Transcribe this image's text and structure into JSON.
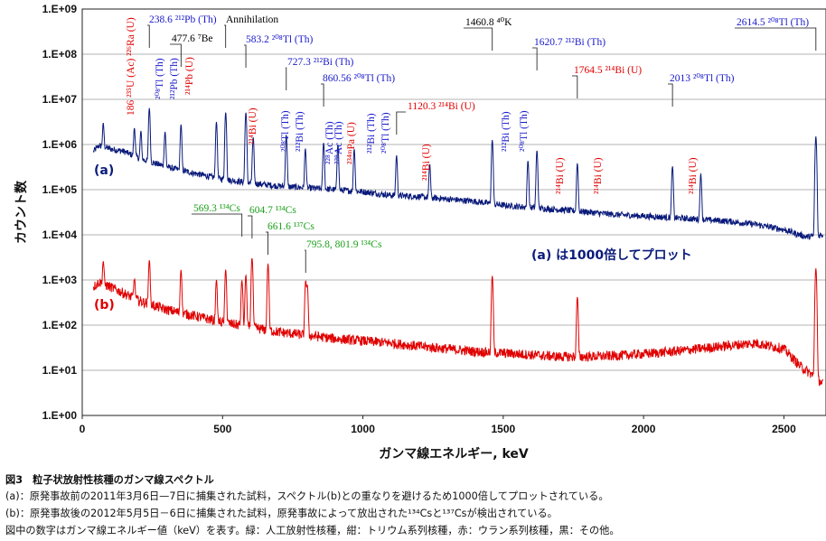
{
  "chart_data": {
    "type": "line",
    "ylabel": "カウント数",
    "xlabel": "ガンマ線エネルギー, keV",
    "y_scale": "log",
    "ylim": [
      1,
      1000000000
    ],
    "xlim": [
      0,
      2650
    ],
    "y_ticks": [
      "1.E+00",
      "1.E+01",
      "1.E+02",
      "1.E+03",
      "1.E+04",
      "1.E+05",
      "1.E+06",
      "1.E+07",
      "1.E+08",
      "1.E+09"
    ],
    "x_ticks": [
      0,
      500,
      1000,
      1500,
      2000,
      2500
    ],
    "grid": true,
    "series": [
      {
        "name": "(a)",
        "color": "#0a1a7a",
        "baseline": [
          [
            40,
            700000
          ],
          [
            60,
            950000
          ],
          [
            100,
            800000
          ],
          [
            150,
            700000
          ],
          [
            200,
            500000
          ],
          [
            300,
            320000
          ],
          [
            400,
            230000
          ],
          [
            500,
            170000
          ],
          [
            600,
            140000
          ],
          [
            700,
            120000
          ],
          [
            800,
            110000
          ],
          [
            900,
            100000
          ],
          [
            1000,
            90000
          ],
          [
            1100,
            75000
          ],
          [
            1200,
            70000
          ],
          [
            1300,
            62000
          ],
          [
            1400,
            55000
          ],
          [
            1500,
            45000
          ],
          [
            1600,
            40000
          ],
          [
            1700,
            36000
          ],
          [
            1800,
            32000
          ],
          [
            1900,
            28000
          ],
          [
            2000,
            26000
          ],
          [
            2100,
            24000
          ],
          [
            2200,
            22000
          ],
          [
            2300,
            20000
          ],
          [
            2400,
            17000
          ],
          [
            2500,
            13000
          ],
          [
            2580,
            9000
          ],
          [
            2640,
            10000
          ]
        ],
        "peaks": [
          [
            75,
            2000000
          ],
          [
            186,
            1800000
          ],
          [
            209,
            1500000
          ],
          [
            239,
            6000000
          ],
          [
            295,
            1600000
          ],
          [
            352,
            2500000
          ],
          [
            478,
            3000000
          ],
          [
            511,
            5000000
          ],
          [
            583,
            5000000
          ],
          [
            609,
            1300000
          ],
          [
            727,
            1500000
          ],
          [
            795,
            700000
          ],
          [
            860,
            1000000
          ],
          [
            911,
            900000
          ],
          [
            969,
            700000
          ],
          [
            1120,
            500000
          ],
          [
            1238,
            300000
          ],
          [
            1461,
            1200000
          ],
          [
            1588,
            400000
          ],
          [
            1620,
            700000
          ],
          [
            1764,
            350000
          ],
          [
            2103,
            300000
          ],
          [
            2204,
            200000
          ],
          [
            2614,
            1500000
          ]
        ]
      },
      {
        "name": "(b)",
        "color": "#e00000",
        "baseline": [
          [
            40,
            700
          ],
          [
            60,
            900
          ],
          [
            100,
            700
          ],
          [
            150,
            500
          ],
          [
            200,
            350
          ],
          [
            300,
            220
          ],
          [
            400,
            160
          ],
          [
            500,
            115
          ],
          [
            600,
            90
          ],
          [
            700,
            70
          ],
          [
            800,
            60
          ],
          [
            900,
            50
          ],
          [
            1000,
            45
          ],
          [
            1100,
            40
          ],
          [
            1200,
            34
          ],
          [
            1300,
            30
          ],
          [
            1400,
            26
          ],
          [
            1500,
            24
          ],
          [
            1600,
            22
          ],
          [
            1700,
            20
          ],
          [
            1800,
            20
          ],
          [
            1900,
            21
          ],
          [
            2000,
            23
          ],
          [
            2100,
            26
          ],
          [
            2200,
            30
          ],
          [
            2300,
            35
          ],
          [
            2400,
            40
          ],
          [
            2500,
            30
          ],
          [
            2560,
            12
          ],
          [
            2600,
            8
          ],
          [
            2640,
            5
          ]
        ],
        "peaks": [
          [
            75,
            1800
          ],
          [
            186,
            700
          ],
          [
            239,
            2500
          ],
          [
            352,
            1500
          ],
          [
            478,
            900
          ],
          [
            511,
            1600
          ],
          [
            569,
            900
          ],
          [
            583,
            1200
          ],
          [
            605,
            3000
          ],
          [
            662,
            2200
          ],
          [
            796,
            900
          ],
          [
            802,
            700
          ],
          [
            1461,
            1200
          ],
          [
            1764,
            400
          ],
          [
            2614,
            1800
          ]
        ]
      }
    ],
    "series_labels": [
      "(a)",
      "(b)"
    ],
    "annotation_note": "(a) は1000倍してプロット",
    "annotations": [
      {
        "text": "186 ²³⁵U (Ac) ²²⁶Ra (U)",
        "color": "#e00000",
        "rotated": true
      },
      {
        "text": "238.6 ²¹²Pb (Th)",
        "color": "#1a1acc"
      },
      {
        "text": "²⁰⁸Tl (Th)",
        "color": "#1a1acc",
        "rotated": true
      },
      {
        "text": "²¹²Pb (Th)",
        "color": "#1a1acc",
        "rotated": true
      },
      {
        "text": "²¹⁴Pb (U)",
        "color": "#e00000",
        "rotated": true
      },
      {
        "text": "477.6 ⁷Be",
        "color": "#000000"
      },
      {
        "text": "Annihilation",
        "color": "#000000"
      },
      {
        "text": "583.2 ²⁰⁸Tl (Th)",
        "color": "#1a1acc"
      },
      {
        "text": "²¹⁴Bi (U)",
        "color": "#e00000",
        "rotated": true
      },
      {
        "text": "727.3 ²¹²Bi (Th)",
        "color": "#1a1acc"
      },
      {
        "text": "²⁰⁸Tl (Th)",
        "color": "#1a1acc",
        "rotated": true
      },
      {
        "text": "²¹²Bi (Th)",
        "color": "#1a1acc",
        "rotated": true
      },
      {
        "text": "860.56 ²⁰⁸Tl (Th)",
        "color": "#1a1acc"
      },
      {
        "text": "²²⁸Ac (Th)",
        "color": "#1a1acc",
        "rotated": true
      },
      {
        "text": "²²⁸Ac (Th)",
        "color": "#1a1acc",
        "rotated": true
      },
      {
        "text": "²³⁴ᵐPa (U)",
        "color": "#e00000",
        "rotated": true
      },
      {
        "text": "²¹²Bi (Th)",
        "color": "#1a1acc",
        "rotated": true
      },
      {
        "text": "²⁰⁸Tl (Th)",
        "color": "#1a1acc",
        "rotated": true
      },
      {
        "text": "1120.3 ²¹⁴Bi (U)",
        "color": "#e00000"
      },
      {
        "text": "²¹⁴Bi (U)",
        "color": "#e00000",
        "rotated": true
      },
      {
        "text": "1460.8 ⁴⁰K",
        "color": "#000000"
      },
      {
        "text": "²¹²Bi (Th)",
        "color": "#1a1acc",
        "rotated": true
      },
      {
        "text": "²⁰⁸Tl (Th)",
        "color": "#1a1acc",
        "rotated": true
      },
      {
        "text": "1620.7 ²¹²Bi (Th)",
        "color": "#1a1acc"
      },
      {
        "text": "1764.5 ²¹⁴Bi (U)",
        "color": "#e00000"
      },
      {
        "text": "²¹⁴Bi (U)",
        "color": "#e00000",
        "rotated": true
      },
      {
        "text": "²¹⁴Bi (U)",
        "color": "#e00000",
        "rotated": true
      },
      {
        "text": "2013 ²⁰⁸Tl (Th)",
        "color": "#1a1acc"
      },
      {
        "text": "²¹⁴Bi (U)",
        "color": "#e00000",
        "rotated": true
      },
      {
        "text": "2614.5 ²⁰⁸Tl (Th)",
        "color": "#1a1acc"
      },
      {
        "text": "569.3 ¹³⁴Cs",
        "color": "#1a9e1a"
      },
      {
        "text": "604.7 ¹³⁴Cs",
        "color": "#1a9e1a"
      },
      {
        "text": "661.6 ¹³⁷Cs",
        "color": "#1a9e1a"
      },
      {
        "text": "795.8, 801.9 ¹³⁴Cs",
        "color": "#1a9e1a"
      }
    ]
  },
  "caption": {
    "title": "図3　粒子状放射性核種のガンマ線スペクトル",
    "line_a": "(a)：原発事故前の2011年3月6日—7日に捕集された試料，スペクトル(b)との重なりを避けるため1000倍してプロットされている。",
    "line_b": "(b)：原発事故後の2012年5月5日－6日に捕集された試料，原発事故によって放出された¹³⁴Csと¹³⁷Csが検出されている。",
    "line_c": "図中の数字はガンマ線エネルギー値（keV）を表す。緑：人工放射性核種，紺：トリウム系列核種，赤：ウラン系列核種，黒：その他。"
  }
}
